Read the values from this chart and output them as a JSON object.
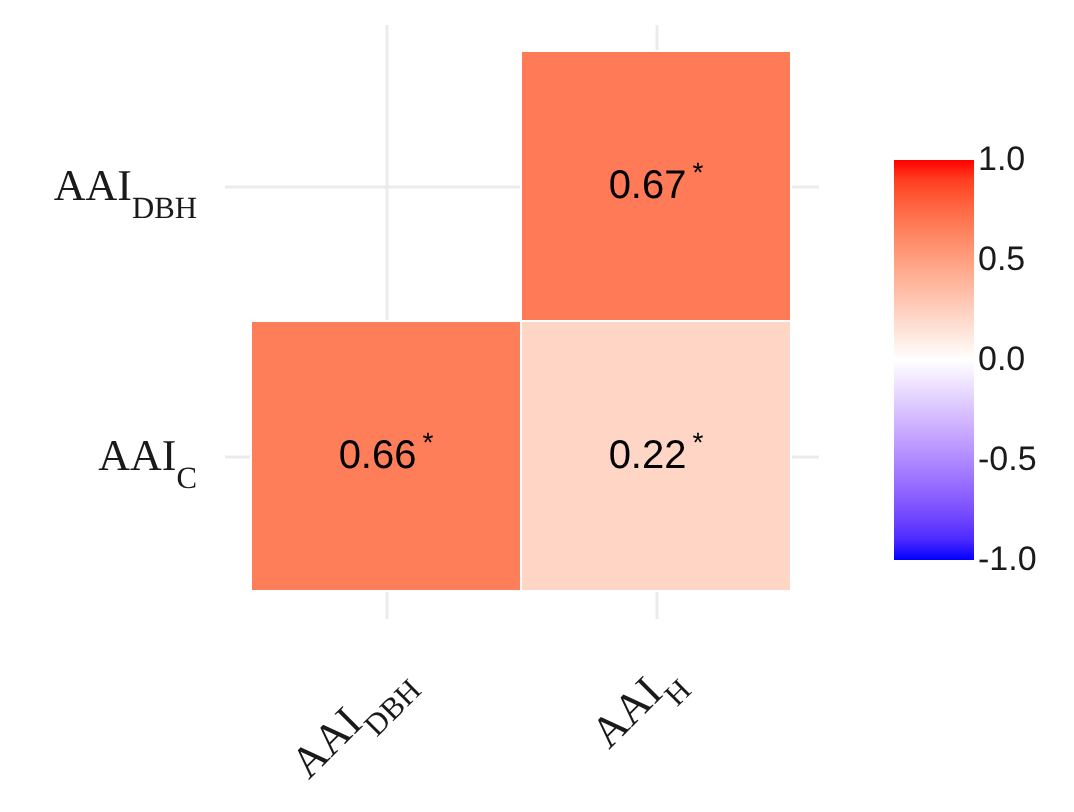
{
  "chart_data": {
    "type": "heatmap",
    "categories": [
      "AAI$_{DBH}$",
      "AAI$_{H}$"
    ],
    "y_categories": [
      "AAI$_{DBH}$",
      "AAI$_{C}$"
    ],
    "cells": [
      [
        null,
        0.67
      ],
      [
        0.66,
        0.22
      ]
    ],
    "cell_labels": [
      [
        null,
        "0.67$^{*}$"
      ],
      [
        "0.66$^{*}$",
        "0.22$^{*}$"
      ]
    ],
    "clim": [
      -1,
      1
    ],
    "cticks": [
      {
        "value": -1,
        "label": "-1.0"
      },
      -0.5,
      {
        "value": 0,
        "label": "0.0"
      },
      0.5,
      {
        "value": 1,
        "label": "1.0"
      }
    ],
    "grid": true
  }
}
